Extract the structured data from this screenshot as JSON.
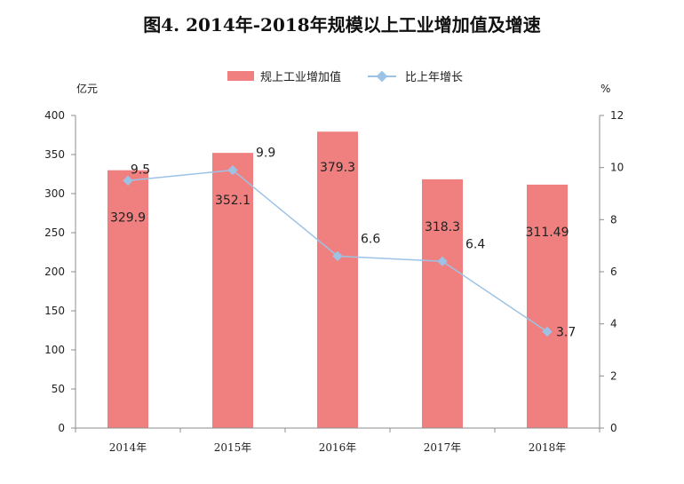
{
  "chart_data": {
    "type": "bar",
    "title": "图4.  2014年-2018年规模以上工业增加值及增速",
    "categories": [
      "2014年",
      "2015年",
      "2016年",
      "2017年",
      "2018年"
    ],
    "series": [
      {
        "name": "规上工业增加值",
        "kind": "bar",
        "axis": "left",
        "color": "#f08080",
        "values": [
          329.9,
          352.1,
          379.3,
          318.3,
          311.49
        ],
        "labels": [
          "329.9",
          "352.1",
          "379.3",
          "318.3",
          "311.49"
        ]
      },
      {
        "name": "比上年增长",
        "kind": "line",
        "axis": "right",
        "color": "#9cc3e6",
        "values": [
          9.5,
          9.9,
          6.6,
          6.4,
          3.7
        ],
        "labels": [
          "9.5",
          "9.9",
          "6.6",
          "6.4",
          "3.7"
        ]
      }
    ],
    "y_left": {
      "unit": "亿元",
      "ylim": [
        0,
        400
      ],
      "ticks": [
        "0",
        "50",
        "100",
        "150",
        "200",
        "250",
        "300",
        "350",
        "400"
      ]
    },
    "y_right": {
      "unit": "%",
      "ylim": [
        0,
        12
      ],
      "ticks": [
        "0",
        "2",
        "4",
        "6",
        "8",
        "10",
        "12"
      ]
    },
    "grid": false,
    "legend": "top-center"
  }
}
